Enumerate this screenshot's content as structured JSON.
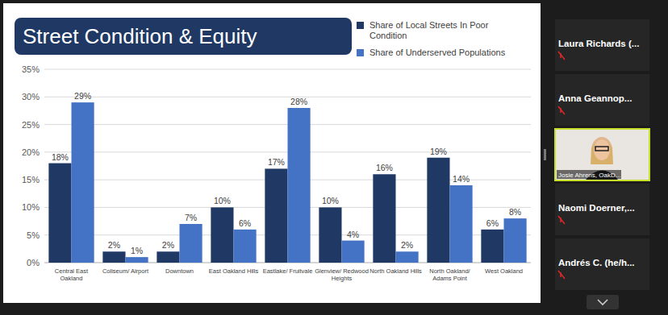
{
  "chart_data": {
    "type": "bar",
    "title": "Street Condition & Equity",
    "categories": [
      "Central East Oakland",
      "Coliseum/ Airport",
      "Downtown",
      "East Oakland Hills",
      "Eastlake/ Fruitvale",
      "Glenview/ Redwood Heights",
      "North Oakland Hills",
      "North Oakland/ Adams Point",
      "West Oakland"
    ],
    "series": [
      {
        "name": "Share of Local Streets In Poor Condition",
        "color": "#1f3864",
        "values": [
          18,
          2,
          2,
          10,
          17,
          10,
          16,
          19,
          6
        ],
        "value_labels": [
          "18%",
          "2%",
          "2%",
          "10%",
          "17%",
          "10%",
          "16%",
          "19%",
          "6%"
        ]
      },
      {
        "name": "Share of Underserved Populations",
        "color": "#4472c4",
        "values": [
          29,
          1,
          7,
          6,
          28,
          4,
          2,
          14,
          8
        ],
        "value_labels": [
          "29%",
          "1%",
          "7%",
          "6%",
          "28%",
          "4%",
          "2%",
          "14%",
          "8%"
        ]
      }
    ],
    "ylim": [
      0,
      35
    ],
    "yticks": [
      {
        "value": 0,
        "label": "0%"
      },
      {
        "value": 5,
        "label": "5%"
      },
      {
        "value": 10,
        "label": "10%"
      },
      {
        "value": 15,
        "label": "15%"
      },
      {
        "value": 20,
        "label": "20%"
      },
      {
        "value": 25,
        "label": "25%"
      },
      {
        "value": 30,
        "label": "30%"
      },
      {
        "value": 35,
        "label": "35%"
      }
    ],
    "grid": true,
    "legend": "top-right",
    "data_labels": true
  },
  "participants": [
    "Laura Richards (...",
    "Anna Geannop...",
    "Josie Ahrens, OakD...",
    "Naomi Doerner,...",
    "Andrés C. (he/h..."
  ]
}
